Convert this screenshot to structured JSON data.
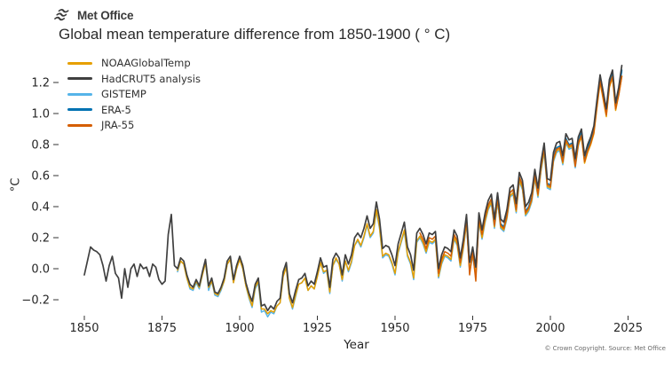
{
  "header": {
    "logo_text": "Met Office",
    "title": "Global mean temperature difference from 1850-1900 ( ° C)"
  },
  "footer": {
    "credit": "© Crown Copyright. Source: Met Office"
  },
  "chart_data": {
    "type": "line",
    "title": "Global mean temperature difference from 1850-1900 ( ° C)",
    "xlabel": "Year",
    "ylabel": "°C",
    "xlim": [
      1848,
      2026
    ],
    "ylim": [
      -0.3,
      1.34
    ],
    "grid": false,
    "legend_position": "upper-left",
    "xticks": [
      1850,
      1875,
      1900,
      1925,
      1950,
      1975,
      2000,
      2025
    ],
    "yticks": [
      -0.2,
      0.0,
      0.2,
      0.4,
      0.6,
      0.8,
      1.0,
      1.2
    ],
    "yticklabels": [
      "−0.2",
      "0.0",
      "0.2",
      "0.4",
      "0.6",
      "0.8",
      "1.0",
      "1.2"
    ],
    "series": [
      {
        "name": "NOAAGlobalTemp",
        "color": "#E69F00",
        "start_year": 1880,
        "values": [
          -0.01,
          0.05,
          0.03,
          -0.06,
          -0.12,
          -0.13,
          -0.08,
          -0.12,
          -0.04,
          0.04,
          -0.12,
          -0.08,
          -0.16,
          -0.17,
          -0.13,
          -0.08,
          0.03,
          0.06,
          -0.09,
          0.0,
          0.06,
          0.0,
          -0.11,
          -0.18,
          -0.24,
          -0.12,
          -0.08,
          -0.26,
          -0.26,
          -0.29,
          -0.27,
          -0.28,
          -0.24,
          -0.22,
          -0.05,
          0.01,
          -0.19,
          -0.25,
          -0.17,
          -0.1,
          -0.09,
          -0.06,
          -0.14,
          -0.11,
          -0.13,
          -0.05,
          0.04,
          -0.02,
          -0.01,
          -0.15,
          0.02,
          0.07,
          0.03,
          -0.07,
          0.05,
          -0.01,
          0.05,
          0.15,
          0.19,
          0.15,
          0.21,
          0.29,
          0.21,
          0.24,
          0.38,
          0.27,
          0.08,
          0.1,
          0.09,
          0.04,
          -0.03,
          0.11,
          0.18,
          0.25,
          0.09,
          0.04,
          -0.06,
          0.18,
          0.21,
          0.17,
          0.11,
          0.18,
          0.17,
          0.19,
          -0.05,
          0.04,
          0.09,
          0.08,
          0.06,
          0.2,
          0.16,
          0.02,
          0.14,
          0.3,
          -0.01,
          0.09,
          -0.04,
          0.31,
          0.2,
          0.31,
          0.39,
          0.43,
          0.27,
          0.44,
          0.27,
          0.25,
          0.33,
          0.47,
          0.49,
          0.37,
          0.57,
          0.52,
          0.35,
          0.38,
          0.44,
          0.59,
          0.47,
          0.64,
          0.76,
          0.53,
          0.52,
          0.7,
          0.76,
          0.77,
          0.68,
          0.82,
          0.78,
          0.79,
          0.66,
          0.8,
          0.85,
          0.68,
          0.75,
          0.8,
          0.87,
          1.04,
          1.2,
          1.09,
          0.98,
          1.17,
          1.23,
          1.02,
          1.12,
          1.24
        ]
      },
      {
        "name": "HadCRUT5 analysis",
        "color": "#404040",
        "start_year": 1850,
        "values": [
          -0.04,
          0.05,
          0.14,
          0.12,
          0.11,
          0.09,
          0.02,
          -0.08,
          0.02,
          0.08,
          -0.03,
          -0.06,
          -0.19,
          0.0,
          -0.12,
          0.0,
          0.03,
          -0.05,
          0.03,
          0.0,
          0.01,
          -0.05,
          0.03,
          0.01,
          -0.07,
          -0.1,
          -0.08,
          0.22,
          0.35,
          0.02,
          0.0,
          0.07,
          0.05,
          -0.04,
          -0.1,
          -0.12,
          -0.07,
          -0.11,
          -0.02,
          0.06,
          -0.11,
          -0.06,
          -0.15,
          -0.16,
          -0.12,
          -0.06,
          0.05,
          0.08,
          -0.07,
          0.02,
          0.08,
          0.02,
          -0.09,
          -0.16,
          -0.21,
          -0.1,
          -0.06,
          -0.24,
          -0.23,
          -0.27,
          -0.24,
          -0.26,
          -0.21,
          -0.19,
          -0.02,
          0.04,
          -0.16,
          -0.22,
          -0.14,
          -0.07,
          -0.06,
          -0.03,
          -0.11,
          -0.08,
          -0.1,
          -0.02,
          0.07,
          0.01,
          0.02,
          -0.12,
          0.06,
          0.1,
          0.07,
          -0.04,
          0.09,
          0.03,
          0.09,
          0.2,
          0.23,
          0.2,
          0.26,
          0.34,
          0.26,
          0.29,
          0.43,
          0.32,
          0.13,
          0.15,
          0.14,
          0.09,
          0.02,
          0.16,
          0.23,
          0.3,
          0.14,
          0.09,
          -0.01,
          0.23,
          0.26,
          0.22,
          0.16,
          0.23,
          0.22,
          0.24,
          0.0,
          0.09,
          0.14,
          0.13,
          0.11,
          0.25,
          0.21,
          0.07,
          0.19,
          0.35,
          0.04,
          0.14,
          0.01,
          0.36,
          0.25,
          0.36,
          0.44,
          0.48,
          0.32,
          0.49,
          0.32,
          0.3,
          0.38,
          0.52,
          0.54,
          0.42,
          0.62,
          0.57,
          0.4,
          0.43,
          0.49,
          0.64,
          0.52,
          0.69,
          0.81,
          0.58,
          0.57,
          0.75,
          0.81,
          0.82,
          0.73,
          0.87,
          0.83,
          0.84,
          0.71,
          0.85,
          0.9,
          0.73,
          0.8,
          0.85,
          0.92,
          1.09,
          1.25,
          1.14,
          1.03,
          1.22,
          1.28,
          1.07,
          1.17,
          1.31
        ]
      },
      {
        "name": "GISTEMP",
        "color": "#56B4E9",
        "start_year": 1880,
        "values": [
          -0.02,
          0.05,
          0.03,
          -0.06,
          -0.13,
          -0.14,
          -0.09,
          -0.13,
          -0.04,
          0.04,
          -0.14,
          -0.08,
          -0.17,
          -0.18,
          -0.14,
          -0.08,
          0.03,
          0.06,
          -0.09,
          0.0,
          0.06,
          0.0,
          -0.11,
          -0.19,
          -0.25,
          -0.13,
          -0.09,
          -0.28,
          -0.27,
          -0.31,
          -0.28,
          -0.29,
          -0.24,
          -0.22,
          -0.04,
          0.02,
          -0.19,
          -0.26,
          -0.18,
          -0.1,
          -0.09,
          -0.06,
          -0.14,
          -0.11,
          -0.13,
          -0.05,
          0.04,
          -0.03,
          -0.01,
          -0.16,
          0.02,
          0.06,
          0.03,
          -0.08,
          0.05,
          -0.02,
          0.04,
          0.15,
          0.18,
          0.14,
          0.2,
          0.28,
          0.2,
          0.23,
          0.37,
          0.26,
          0.07,
          0.09,
          0.08,
          0.03,
          -0.04,
          0.1,
          0.17,
          0.24,
          0.08,
          0.03,
          -0.07,
          0.17,
          0.2,
          0.16,
          0.1,
          0.17,
          0.16,
          0.18,
          -0.06,
          0.03,
          0.08,
          0.07,
          0.05,
          0.19,
          0.15,
          0.01,
          0.13,
          0.29,
          -0.02,
          0.08,
          -0.05,
          0.3,
          0.19,
          0.3,
          0.38,
          0.42,
          0.26,
          0.43,
          0.26,
          0.24,
          0.32,
          0.46,
          0.48,
          0.36,
          0.56,
          0.51,
          0.34,
          0.37,
          0.43,
          0.58,
          0.46,
          0.63,
          0.75,
          0.52,
          0.51,
          0.69,
          0.75,
          0.76,
          0.67,
          0.81,
          0.77,
          0.78,
          0.65,
          0.79,
          0.86,
          0.69,
          0.76,
          0.81,
          0.89,
          1.06,
          1.22,
          1.11,
          1.0,
          1.19,
          1.25,
          1.04,
          1.15,
          1.27
        ]
      },
      {
        "name": "ERA-5",
        "color": "#0072B2",
        "start_year": 1979,
        "values": [
          0.33,
          0.41,
          0.45,
          0.29,
          0.46,
          0.29,
          0.27,
          0.35,
          0.49,
          0.51,
          0.39,
          0.59,
          0.54,
          0.37,
          0.4,
          0.46,
          0.61,
          0.49,
          0.66,
          0.78,
          0.55,
          0.54,
          0.72,
          0.78,
          0.79,
          0.7,
          0.84,
          0.8,
          0.81,
          0.68,
          0.82,
          0.88,
          0.71,
          0.78,
          0.83,
          0.9,
          1.07,
          1.24,
          1.13,
          1.01,
          1.2,
          1.26,
          1.05,
          1.15,
          1.28
        ]
      },
      {
        "name": "JRA-55",
        "color": "#D55E00",
        "start_year": 1958,
        "values": [
          0.23,
          0.19,
          0.13,
          0.2,
          0.19,
          0.21,
          -0.03,
          0.06,
          0.11,
          0.1,
          0.08,
          0.22,
          0.18,
          0.04,
          0.16,
          0.32,
          -0.04,
          0.11,
          -0.08,
          0.33,
          0.22,
          0.33,
          0.41,
          0.45,
          0.28,
          0.46,
          0.28,
          0.26,
          0.34,
          0.49,
          0.51,
          0.38,
          0.59,
          0.54,
          0.36,
          0.39,
          0.45,
          0.61,
          0.48,
          0.66,
          0.78,
          0.54,
          0.53,
          0.71,
          0.77,
          0.78,
          0.69,
          0.83,
          0.79,
          0.8,
          0.66,
          0.81,
          0.86,
          0.69,
          0.76,
          0.81,
          0.88,
          1.05,
          1.21,
          1.1,
          0.99,
          1.18,
          1.24,
          1.03,
          1.12,
          1.24
        ]
      }
    ]
  }
}
